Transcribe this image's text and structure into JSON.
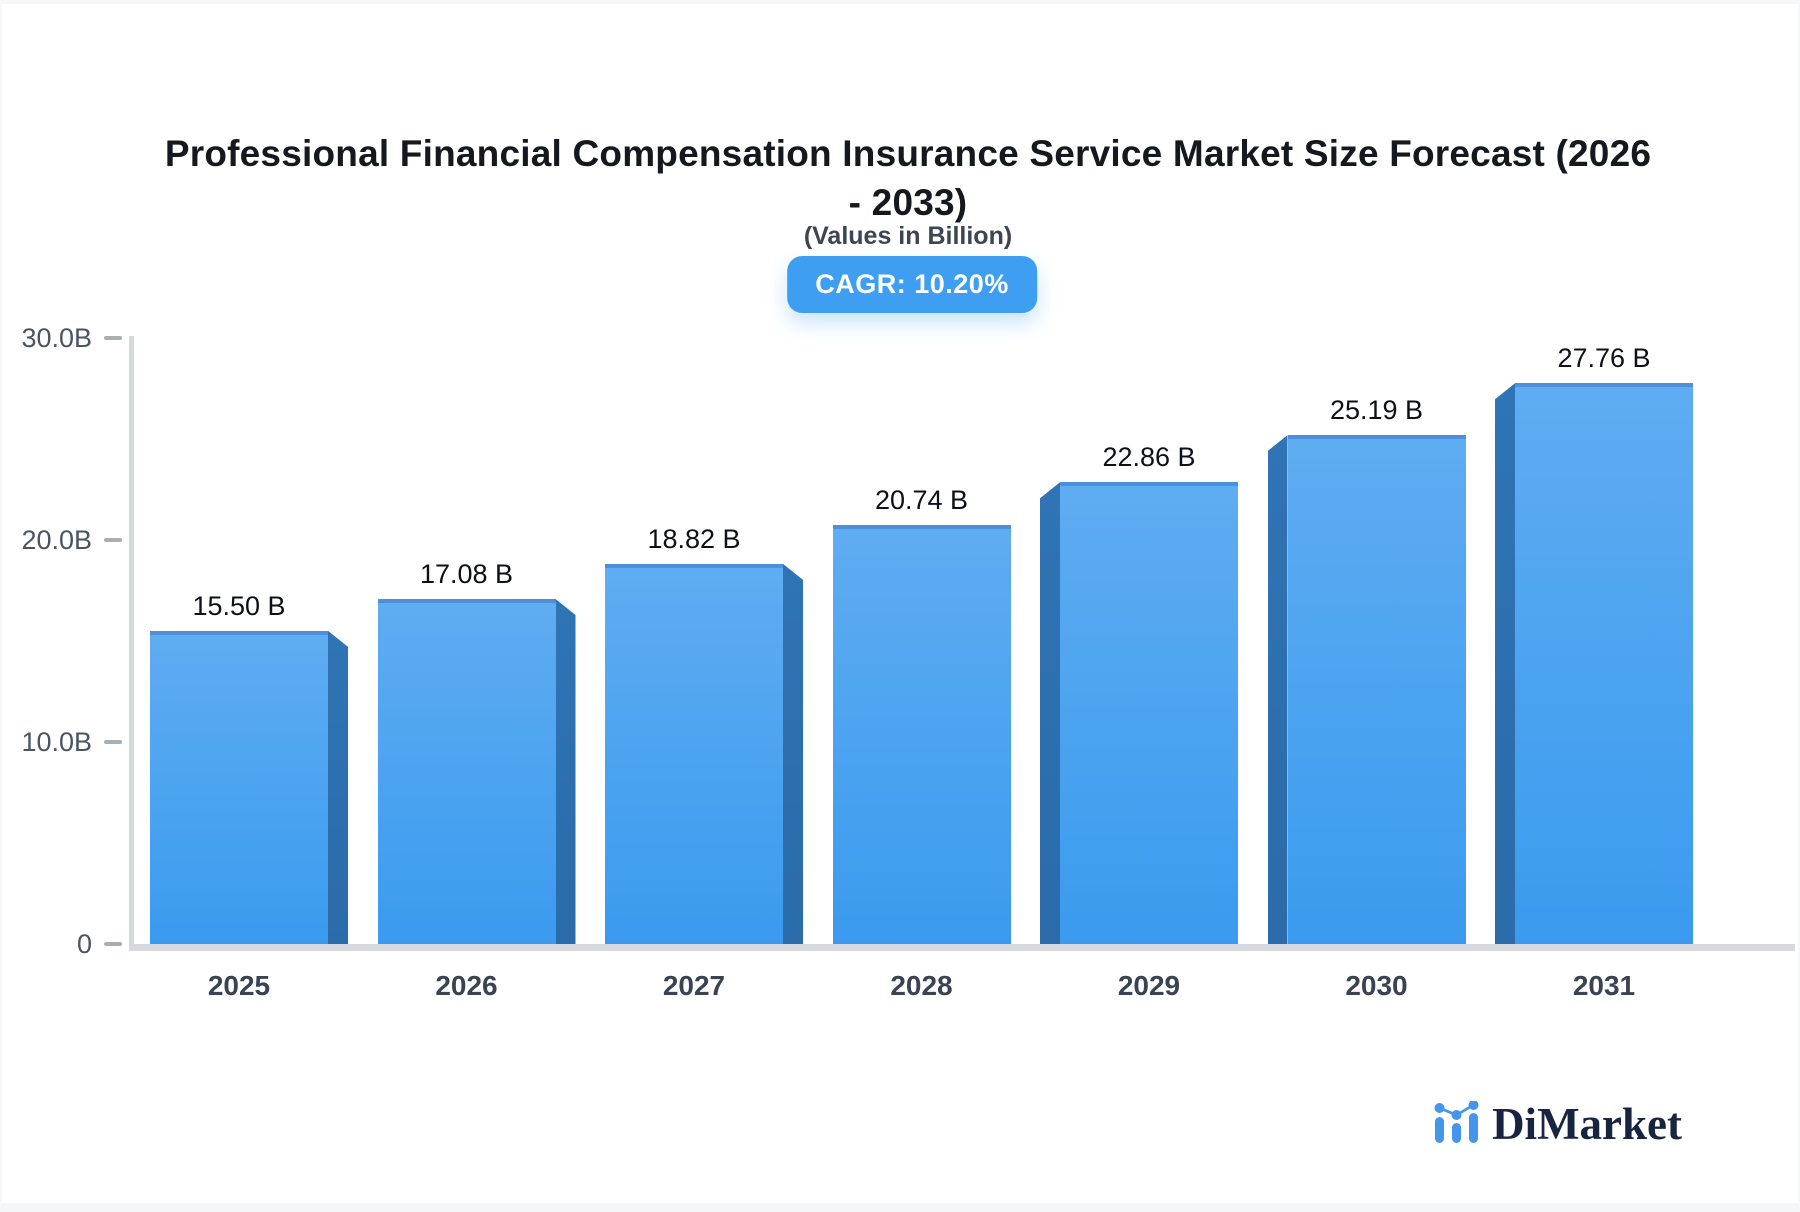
{
  "header": {
    "title": "Professional Financial Compensation Insurance Service Market Size Forecast (2026 - 2033)",
    "title_lines": [
      "Professional Financial Compensation Insurance Service Market Size Forecast (2026",
      "- 2033)"
    ],
    "subtitle": "(Values in Billion)",
    "cagr_label": "CAGR: 10.20%"
  },
  "chart_data": {
    "type": "bar",
    "categories": [
      "2025",
      "2026",
      "2027",
      "2028",
      "2029",
      "2030",
      "2031"
    ],
    "values": [
      15.5,
      17.08,
      18.82,
      20.74,
      22.86,
      25.19,
      27.76
    ],
    "value_labels": [
      "15.50 B",
      "17.08 B",
      "18.82 B",
      "20.74 B",
      "22.86 B",
      "25.19 B",
      "27.76 B"
    ],
    "title": "Professional Financial Compensation Insurance Service Market Size Forecast (2026 - 2033)",
    "subtitle": "(Values in Billion)",
    "xlabel": "",
    "ylabel": "",
    "ylim": [
      0,
      30
    ],
    "y_ticks": [
      {
        "value": 30,
        "label": "30.0B"
      },
      {
        "value": 20,
        "label": "20.0B"
      },
      {
        "value": 10,
        "label": "10.0B"
      },
      {
        "value": 0,
        "label": "0"
      }
    ],
    "grid": false,
    "legend": false,
    "style": "3d-center-perspective"
  },
  "colors": {
    "accent": "#3e9ff2",
    "bar_face_top": "#5facf1",
    "bar_face_bottom": "#3b9aef",
    "bar_side": "#2b6ba9",
    "bar_top_edge": "#4a90da",
    "axis_line": "#d6d9dd",
    "tick_dash": "#a8aeb6",
    "logo_blue": "#4495ec",
    "brand_navy": "#182540"
  },
  "branding": {
    "name": "DiMarket",
    "icon": "bar-chart-logo-icon"
  }
}
